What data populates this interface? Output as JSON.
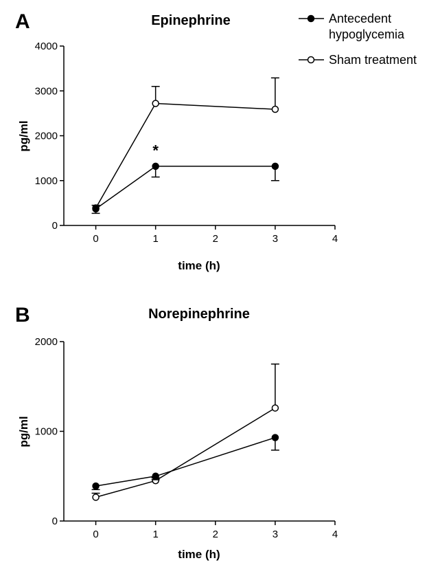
{
  "legend": {
    "position": "top-right",
    "entries": [
      {
        "lines": [
          "Antecedent",
          "hypoglycemia"
        ],
        "marker": "filled-circle",
        "color": "#000000"
      },
      {
        "lines": [
          "Sham treatment"
        ],
        "marker": "open-circle",
        "color": "#000000"
      }
    ]
  },
  "chart_data": [
    {
      "type": "line",
      "panel": "A",
      "title": "Epinephrine",
      "xlabel": "time (h)",
      "ylabel": "pg/ml",
      "xlim": [
        -0.5,
        4
      ],
      "ylim": [
        0,
        4000
      ],
      "xticks": [
        0,
        1,
        2,
        3,
        4
      ],
      "yticks": [
        0,
        1000,
        2000,
        3000,
        4000
      ],
      "grid": false,
      "series": [
        {
          "name": "Sham treatment",
          "marker": "open-circle",
          "x": [
            0,
            1,
            3
          ],
          "y": [
            390,
            2720,
            2590
          ],
          "error": [
            60,
            380,
            700
          ]
        },
        {
          "name": "Antecedent hypoglycemia",
          "marker": "filled-circle",
          "x": [
            0,
            1,
            3
          ],
          "y": [
            370,
            1320,
            1320
          ],
          "error": [
            100,
            240,
            320
          ]
        }
      ],
      "annotations": [
        {
          "text": "*",
          "x": 1,
          "y": 1680
        }
      ]
    },
    {
      "type": "line",
      "panel": "B",
      "title": "Norepinephrine",
      "xlabel": "time (h)",
      "ylabel": "pg/ml",
      "xlim": [
        -0.5,
        4
      ],
      "ylim": [
        0,
        2000
      ],
      "xticks": [
        0,
        1,
        2,
        3,
        4
      ],
      "yticks": [
        0,
        1000,
        2000
      ],
      "grid": false,
      "series": [
        {
          "name": "Sham treatment",
          "marker": "open-circle",
          "x": [
            0,
            1,
            3
          ],
          "y": [
            265,
            450,
            1260
          ],
          "error": [
            45,
            30,
            490
          ]
        },
        {
          "name": "Antecedent hypoglycemia",
          "marker": "filled-circle",
          "x": [
            0,
            1,
            3
          ],
          "y": [
            390,
            500,
            930
          ],
          "error": [
            40,
            40,
            140
          ]
        }
      ],
      "annotations": []
    }
  ]
}
